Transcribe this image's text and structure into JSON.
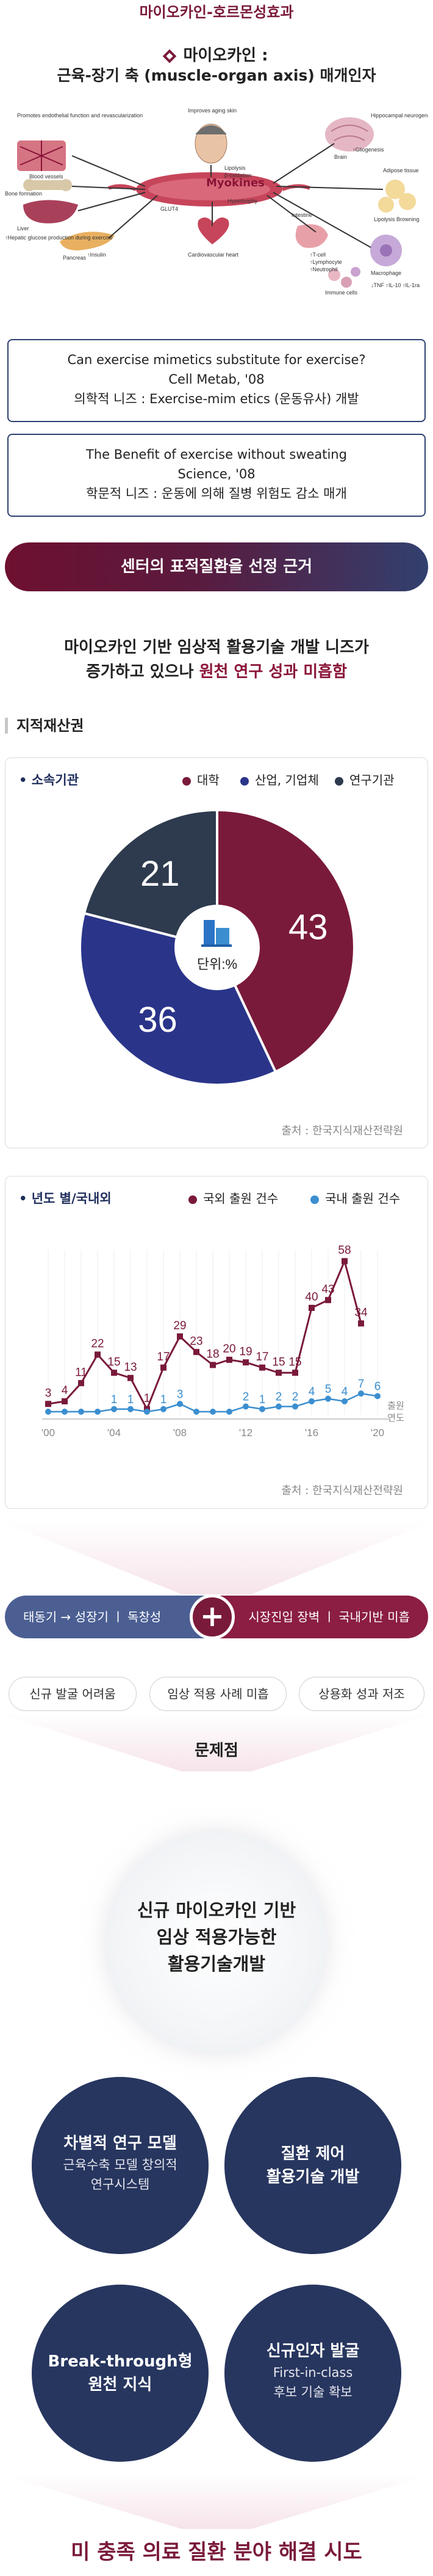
{
  "header": {
    "top_title": "마이오카인-호르몬성효과",
    "diamond_title": "마이오카인 :",
    "sub_title": "근육-장기 축 (muscle-organ axis) 매개인자"
  },
  "illustration": {
    "title": "Myokines",
    "labels": {
      "improves_skin": "Improves aging skin",
      "promotes_fn": "Promotes endothelial function and revascularization",
      "blood_vessels": "Blood vessels",
      "bone": "Bone formation",
      "liver": "Liver",
      "hepatic": "↑Hepatic glucose production during exercise",
      "pancreas": "Pancreas",
      "insulin": "↑Insulin",
      "brain": "Brain",
      "hippocampus": "Hippocampal neurogenesis",
      "adipose": "Adipose tissue",
      "lipolysis": "Lipolysis Browning",
      "intestine": "Intestine",
      "macrophage": "Macrophage",
      "tnf": "↓TNF ↑IL-10 ↑IL-1ra",
      "cardio": "Cardiovascular heart",
      "glut4": "GLUT4",
      "lipolysis2": "Lipolysis",
      "beta_ox": "β-oxidation",
      "hypertrophy": "Hypertrophy",
      "tcell": "↑T-cell",
      "lymphocyte": "↑Lymphocyte",
      "neutrophil": "↑Neutrophil",
      "immune": "Immune cells",
      "gliogenesis": "↑Gliogenesis"
    }
  },
  "info_boxes": [
    {
      "line1": "Can exercise mimetics substitute for exercise?",
      "line2": "Cell Metab, '08",
      "line3": "의학적 니즈 : Exercise-mim etics (운동유사) 개발"
    },
    {
      "line1": "The Benefit of exercise without sweating",
      "line2": "Science, '08",
      "line3": "학문적 니즈 : 운동에 의해 질병 위험도 감소 매개"
    }
  ],
  "banner": "센터의 표적질환을 선정 근거",
  "need": {
    "line1": "마이오카인 기반 임상적 활용기술 개발 니즈가",
    "line2_a": "증가하고 있으나",
    "line2_hl": "원천 연구 성과 미흡함"
  },
  "ip_title": "지적재산권",
  "pie_card": {
    "label": "소속기관",
    "legend": [
      "대학",
      "산업, 기업체",
      "연구기관"
    ],
    "center_text": "단위:%",
    "source": "출처 : 한국지식재산전략원"
  },
  "line_card": {
    "label": "년도 별/국내외",
    "legend": [
      "국외 출원 건수",
      "국내 출원 건수"
    ],
    "axis_unit_line1": "출원",
    "axis_unit_line2": "연도",
    "source": "출처 : 한국지식재산전략원"
  },
  "chart_data": [
    {
      "type": "pie",
      "title": "소속기관",
      "unit": "%",
      "categories": [
        "대학",
        "산업, 기업체",
        "연구기관"
      ],
      "values": [
        43,
        36,
        21
      ],
      "colors": [
        "#7a1a3a",
        "#2a358a",
        "#2e3a4e"
      ],
      "legend_position": "top-right"
    },
    {
      "type": "line",
      "title": "년도 별/국내외",
      "x": [
        2000,
        2001,
        2002,
        2003,
        2004,
        2005,
        2006,
        2007,
        2008,
        2009,
        2010,
        2011,
        2012,
        2013,
        2014,
        2015,
        2016,
        2017,
        2018,
        2019,
        2020
      ],
      "x_tick_labels": [
        "'00",
        "'04",
        "'08",
        "'12",
        "'16",
        "'20"
      ],
      "x_tick_values": [
        2000,
        2004,
        2008,
        2012,
        2016,
        2020
      ],
      "series": [
        {
          "name": "국외 출원 건수",
          "color": "#7a1a3a",
          "values": [
            3,
            4,
            11,
            22,
            15,
            13,
            1,
            17,
            29,
            23,
            18,
            20,
            19,
            17,
            15,
            15,
            40,
            43,
            58,
            34,
            null
          ]
        },
        {
          "name": "국내 출원 건수",
          "color": "#3b8fd0",
          "values": [
            0,
            0,
            0,
            0,
            1,
            1,
            0,
            1,
            3,
            0,
            0,
            0,
            2,
            1,
            2,
            2,
            4,
            5,
            4,
            7,
            6
          ]
        }
      ],
      "ylim": [
        0,
        60
      ],
      "legend_position": "top-right"
    }
  ],
  "funnel": {
    "left": "태동기 → 성장기 ㅣ 독창성",
    "plus": "+",
    "right": "시장진입 장벽 ㅣ 국내기반 미흡",
    "problems": [
      "신규 발굴 어려움",
      "임상 적용 사례 미흡",
      "상용화 성과 저조"
    ],
    "problem_label": "문제점"
  },
  "solution": {
    "center": [
      "신규 마이오카인 기반",
      "임상 적용가능한",
      "활용기술개발"
    ],
    "circles": [
      {
        "title": "차별적 연구 모델",
        "sub1": "근육수축 모델 창의적",
        "sub2": "연구시스템"
      },
      {
        "title": "질환 제어",
        "title2": "활용기술 개발"
      },
      {
        "title": "Break-through형",
        "title2": "원천 지식"
      },
      {
        "title": "신규인자 발굴",
        "sub1": "First-in-class",
        "sub2": "후보 기술 확보"
      }
    ],
    "bottom": "미 충족 의료 질환 분야 해결 시도"
  }
}
